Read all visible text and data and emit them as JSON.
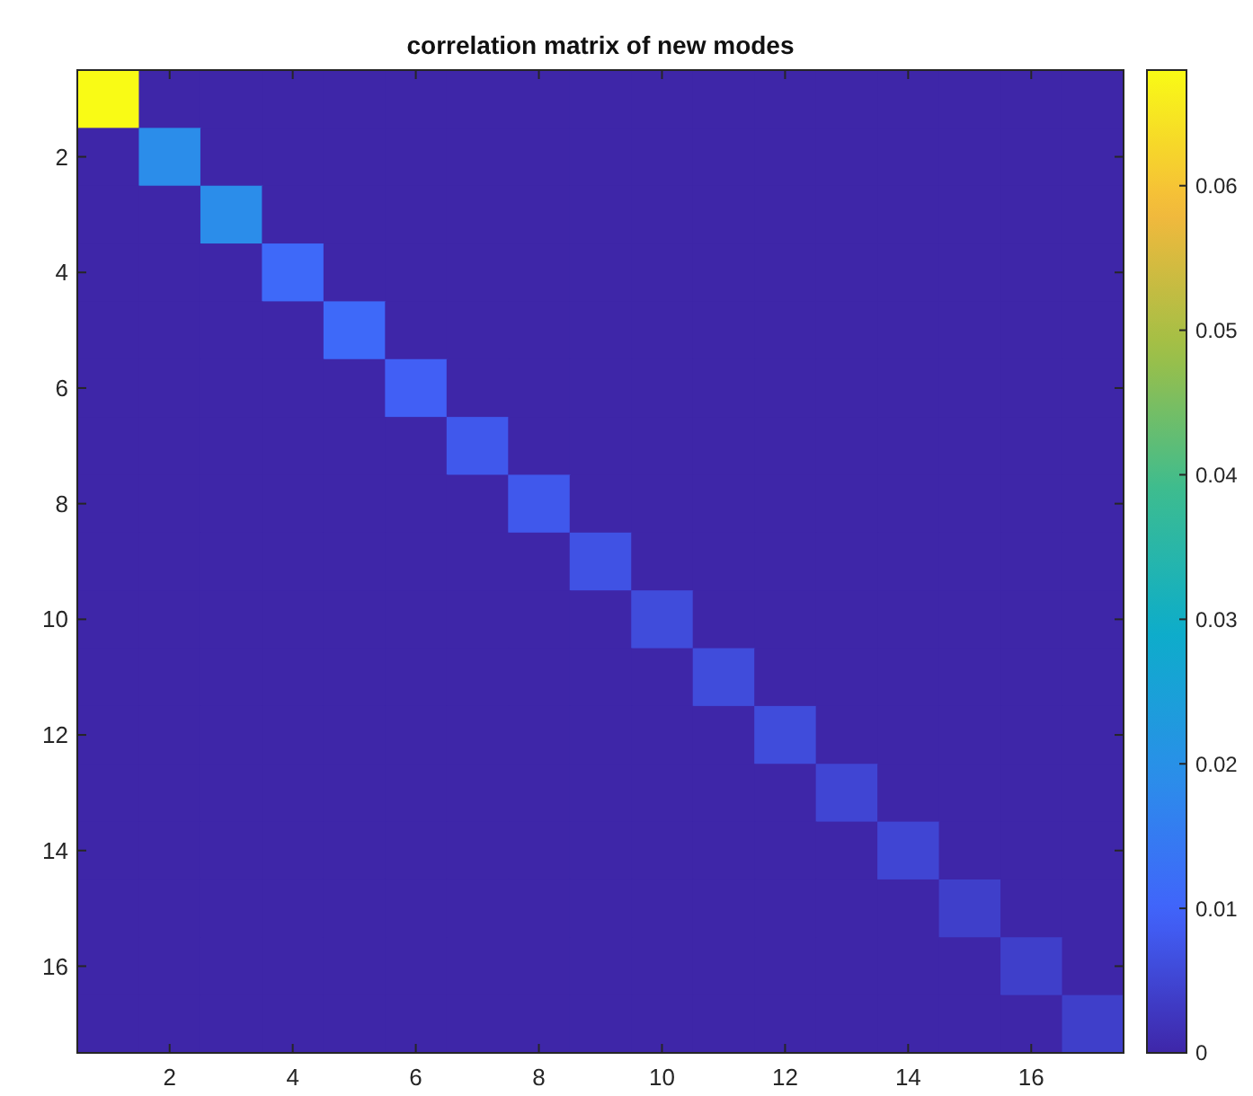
{
  "chart_data": {
    "type": "heatmap",
    "title": "correlation matrix of new modes",
    "categories": [
      null,
      "2",
      null,
      "4",
      null,
      "6",
      null,
      "8",
      null,
      "10",
      null,
      "12",
      null,
      "14",
      null,
      "16",
      null
    ],
    "y_categories": [
      null,
      "2",
      null,
      "4",
      null,
      "6",
      null,
      "8",
      null,
      "10",
      null,
      "12",
      null,
      "14",
      null,
      "16",
      null
    ],
    "cells": [
      [
        0.068,
        0,
        0,
        0,
        0,
        0,
        0,
        0,
        0,
        0,
        0,
        0,
        0,
        0,
        0,
        0,
        0
      ],
      [
        0,
        0.019,
        0,
        0,
        0,
        0,
        0,
        0,
        0,
        0,
        0,
        0,
        0,
        0,
        0,
        0,
        0
      ],
      [
        0,
        0,
        0.019,
        0,
        0,
        0,
        0,
        0,
        0,
        0,
        0,
        0,
        0,
        0,
        0,
        0,
        0
      ],
      [
        0,
        0,
        0,
        0.011,
        0,
        0,
        0,
        0,
        0,
        0,
        0,
        0,
        0,
        0,
        0,
        0,
        0
      ],
      [
        0,
        0,
        0,
        0,
        0.011,
        0,
        0,
        0,
        0,
        0,
        0,
        0,
        0,
        0,
        0,
        0,
        0
      ],
      [
        0,
        0,
        0,
        0,
        0,
        0.009,
        0,
        0,
        0,
        0,
        0,
        0,
        0,
        0,
        0,
        0,
        0
      ],
      [
        0,
        0,
        0,
        0,
        0,
        0,
        0.008,
        0,
        0,
        0,
        0,
        0,
        0,
        0,
        0,
        0,
        0
      ],
      [
        0,
        0,
        0,
        0,
        0,
        0,
        0,
        0.008,
        0,
        0,
        0,
        0,
        0,
        0,
        0,
        0,
        0
      ],
      [
        0,
        0,
        0,
        0,
        0,
        0,
        0,
        0,
        0.007,
        0,
        0,
        0,
        0,
        0,
        0,
        0,
        0
      ],
      [
        0,
        0,
        0,
        0,
        0,
        0,
        0,
        0,
        0,
        0.006,
        0,
        0,
        0,
        0,
        0,
        0,
        0
      ],
      [
        0,
        0,
        0,
        0,
        0,
        0,
        0,
        0,
        0,
        0,
        0.006,
        0,
        0,
        0,
        0,
        0,
        0
      ],
      [
        0,
        0,
        0,
        0,
        0,
        0,
        0,
        0,
        0,
        0,
        0,
        0.006,
        0,
        0,
        0,
        0,
        0
      ],
      [
        0,
        0,
        0,
        0,
        0,
        0,
        0,
        0,
        0,
        0,
        0,
        0,
        0.005,
        0,
        0,
        0,
        0
      ],
      [
        0,
        0,
        0,
        0,
        0,
        0,
        0,
        0,
        0,
        0,
        0,
        0,
        0,
        0.005,
        0,
        0,
        0
      ],
      [
        0,
        0,
        0,
        0,
        0,
        0,
        0,
        0,
        0,
        0,
        0,
        0,
        0,
        0,
        0.004,
        0,
        0
      ],
      [
        0,
        0,
        0,
        0,
        0,
        0,
        0,
        0,
        0,
        0,
        0,
        0,
        0,
        0,
        0,
        0.004,
        0
      ],
      [
        0,
        0,
        0,
        0,
        0,
        0,
        0,
        0,
        0,
        0,
        0,
        0,
        0,
        0,
        0,
        0,
        0.004
      ]
    ],
    "clim": [
      0,
      0.068
    ],
    "cticks": [
      0,
      0.01,
      0.02,
      0.03,
      0.04,
      0.05,
      0.06
    ]
  }
}
